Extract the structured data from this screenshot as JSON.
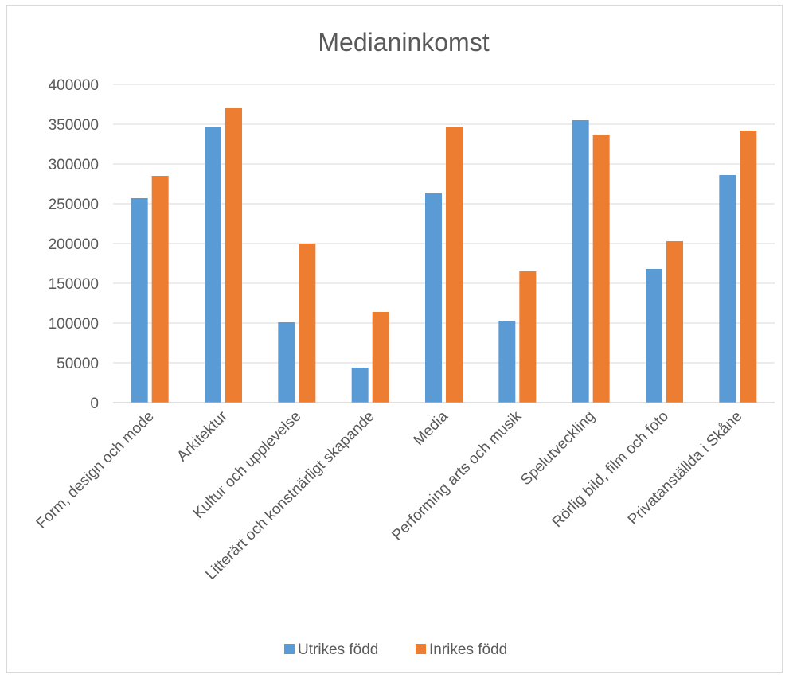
{
  "chart_data": {
    "type": "bar",
    "title": "Medianinkomst",
    "xlabel": "",
    "ylabel": "",
    "ylim": [
      0,
      400000
    ],
    "yticks": [
      0,
      50000,
      100000,
      150000,
      200000,
      250000,
      300000,
      350000,
      400000
    ],
    "grid": true,
    "legend_position": "bottom",
    "categories": [
      "Form, design och mode",
      "Arkitektur",
      "Kultur och upplevelse",
      "Litterärt och konstnärligt skapande",
      "Media",
      "Performing arts och musik",
      "Spelutveckling",
      "Rörlig bild, film och foto",
      "Privatanställda i Skåne"
    ],
    "series": [
      {
        "name": "Utrikes född",
        "color": "#5b9bd5",
        "values": [
          257000,
          346000,
          101000,
          44000,
          263000,
          103000,
          355000,
          168000,
          286000
        ]
      },
      {
        "name": "Inrikes född",
        "color": "#ed7d31",
        "values": [
          285000,
          370000,
          200000,
          114000,
          347000,
          165000,
          336000,
          203000,
          342000
        ]
      }
    ]
  }
}
